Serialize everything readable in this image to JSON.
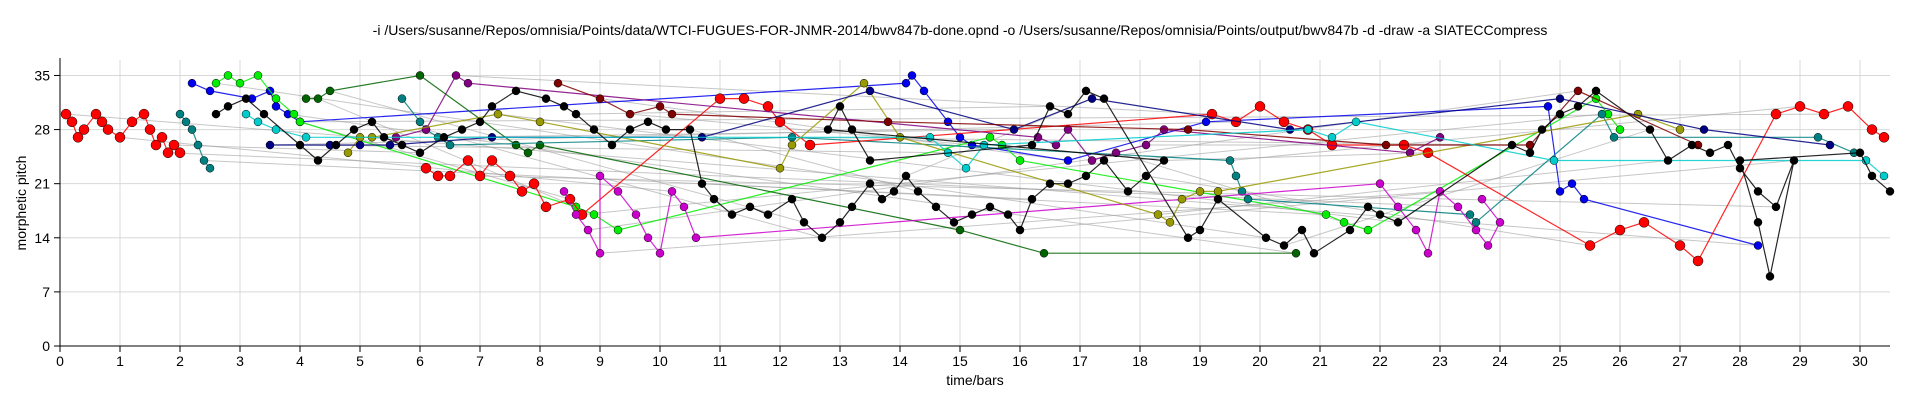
{
  "chart_data": {
    "type": "scatter",
    "title": "-i /Users/susanne/Repos/omnisia/Points/data/WTCI-FUGUES-FOR-JNMR-2014/bwv847b-done.opnd -o /Users/susanne/Repos/omnisia/Points/output/bwv847b -d -draw -a SIATECCompress",
    "xlabel": "time/bars",
    "ylabel": "morphetic pitch",
    "xlim": [
      0,
      30.5
    ],
    "ylim": [
      0,
      37
    ],
    "xticks": [
      0,
      1,
      2,
      3,
      4,
      5,
      6,
      7,
      8,
      9,
      10,
      11,
      12,
      13,
      14,
      15,
      16,
      17,
      18,
      19,
      20,
      21,
      22,
      23,
      24,
      25,
      26,
      27,
      28,
      29,
      30
    ],
    "yticks": [
      0,
      7,
      14,
      21,
      28,
      35
    ],
    "grid": true,
    "colors": {
      "red": "#ff0000",
      "blue": "#0000ee",
      "teal": "#008080",
      "cyan": "#00cccc",
      "green": "#00ee00",
      "darkgreen": "#006400",
      "magenta": "#cc00cc",
      "purple": "#800080",
      "olive": "#999900",
      "navy": "#000080",
      "maroon": "#800000",
      "black": "#000000",
      "connector_gray": "#999999"
    },
    "series": [
      {
        "color": "red",
        "points": [
          [
            0.1,
            30
          ],
          [
            0.2,
            29
          ],
          [
            0.3,
            27
          ],
          [
            0.4,
            28
          ],
          [
            0.6,
            30
          ],
          [
            0.7,
            29
          ],
          [
            0.8,
            28
          ],
          [
            1.0,
            27
          ],
          [
            1.2,
            29
          ],
          [
            1.4,
            30
          ],
          [
            1.5,
            28
          ],
          [
            1.6,
            26
          ],
          [
            1.7,
            27
          ],
          [
            1.8,
            25
          ],
          [
            1.9,
            26
          ],
          [
            2.0,
            25
          ]
        ]
      },
      {
        "color": "teal",
        "points": [
          [
            2.0,
            30
          ],
          [
            2.1,
            29
          ],
          [
            2.2,
            28
          ],
          [
            2.3,
            26
          ],
          [
            2.4,
            24
          ],
          [
            2.5,
            23
          ]
        ]
      },
      {
        "color": "blue",
        "points": [
          [
            2.2,
            34
          ],
          [
            2.5,
            33
          ],
          [
            3.2,
            32
          ],
          [
            3.5,
            33
          ],
          [
            3.6,
            31
          ],
          [
            3.8,
            30
          ],
          [
            4.0,
            29
          ],
          [
            14.1,
            34
          ],
          [
            14.2,
            35
          ],
          [
            14.4,
            33
          ],
          [
            14.8,
            29
          ],
          [
            15.0,
            27
          ],
          [
            15.2,
            26
          ],
          [
            16.8,
            24
          ],
          [
            19.1,
            29
          ],
          [
            24.8,
            31
          ],
          [
            25.0,
            20
          ],
          [
            25.2,
            21
          ],
          [
            25.4,
            19
          ],
          [
            28.3,
            13
          ]
        ]
      },
      {
        "color": "green",
        "points": [
          [
            2.6,
            34
          ],
          [
            2.8,
            35
          ],
          [
            3.0,
            34
          ],
          [
            3.3,
            35
          ],
          [
            3.6,
            32
          ],
          [
            3.9,
            30
          ],
          [
            4.0,
            29
          ],
          [
            8.6,
            18
          ],
          [
            8.9,
            17
          ],
          [
            9.3,
            15
          ],
          [
            15.5,
            27
          ],
          [
            15.7,
            26
          ],
          [
            16.0,
            24
          ],
          [
            21.1,
            17
          ],
          [
            21.4,
            16
          ],
          [
            21.8,
            15
          ],
          [
            25.6,
            32
          ],
          [
            25.8,
            30
          ],
          [
            26.0,
            28
          ]
        ]
      },
      {
        "color": "darkgreen",
        "points": [
          [
            4.1,
            32
          ],
          [
            4.3,
            32
          ],
          [
            4.5,
            33
          ],
          [
            6.0,
            35
          ],
          [
            7.6,
            26
          ],
          [
            7.8,
            25
          ],
          [
            8.0,
            26
          ],
          [
            15.0,
            15
          ],
          [
            16.4,
            12
          ],
          [
            20.6,
            12
          ]
        ]
      },
      {
        "color": "teal",
        "points": [
          [
            5.7,
            32
          ],
          [
            6.0,
            29
          ],
          [
            6.1,
            28
          ],
          [
            6.3,
            27
          ],
          [
            6.5,
            26
          ],
          [
            12.2,
            27
          ],
          [
            19.5,
            24
          ],
          [
            19.6,
            22
          ],
          [
            19.7,
            20
          ],
          [
            19.8,
            19
          ],
          [
            23.5,
            17
          ],
          [
            23.6,
            16
          ],
          [
            25.7,
            30
          ],
          [
            25.9,
            27
          ],
          [
            29.3,
            27
          ],
          [
            29.9,
            25
          ]
        ]
      },
      {
        "color": "red",
        "points": [
          [
            6.1,
            23
          ],
          [
            6.3,
            22
          ],
          [
            6.5,
            22
          ],
          [
            6.8,
            24
          ],
          [
            7.0,
            22
          ],
          [
            7.2,
            24
          ],
          [
            7.5,
            22
          ],
          [
            7.7,
            20
          ],
          [
            7.9,
            21
          ],
          [
            8.1,
            18
          ],
          [
            8.5,
            19
          ],
          [
            8.7,
            17
          ],
          [
            11.0,
            32
          ],
          [
            11.4,
            32
          ],
          [
            11.8,
            31
          ],
          [
            12.0,
            29
          ],
          [
            12.5,
            26
          ],
          [
            19.2,
            30
          ],
          [
            19.6,
            29
          ],
          [
            20.0,
            31
          ],
          [
            20.4,
            29
          ],
          [
            20.8,
            28
          ],
          [
            21.2,
            26
          ],
          [
            22.4,
            26
          ],
          [
            22.8,
            25
          ],
          [
            25.5,
            13
          ],
          [
            26.0,
            15
          ],
          [
            26.4,
            16
          ],
          [
            27.0,
            13
          ],
          [
            27.3,
            11
          ],
          [
            28.6,
            30
          ],
          [
            29.0,
            31
          ],
          [
            29.4,
            30
          ],
          [
            29.8,
            31
          ],
          [
            30.2,
            28
          ],
          [
            30.4,
            27
          ]
        ]
      },
      {
        "color": "magenta",
        "points": [
          [
            8.4,
            20
          ],
          [
            8.6,
            17
          ],
          [
            8.8,
            15
          ],
          [
            9.0,
            12
          ],
          [
            9.0,
            22
          ],
          [
            9.3,
            20
          ],
          [
            9.6,
            17
          ],
          [
            9.8,
            14
          ],
          [
            10.0,
            12
          ],
          [
            10.2,
            20
          ],
          [
            10.4,
            18
          ],
          [
            10.6,
            14
          ],
          [
            22.0,
            21
          ],
          [
            22.3,
            18
          ],
          [
            22.6,
            15
          ],
          [
            22.8,
            12
          ],
          [
            23.0,
            20
          ],
          [
            23.3,
            18
          ],
          [
            23.6,
            15
          ],
          [
            23.8,
            13
          ],
          [
            24.0,
            16
          ],
          [
            23.7,
            19
          ]
        ]
      },
      {
        "color": "purple",
        "points": [
          [
            5.6,
            27
          ],
          [
            6.1,
            28
          ],
          [
            6.6,
            35
          ],
          [
            6.8,
            34
          ],
          [
            16.3,
            27
          ],
          [
            16.6,
            26
          ],
          [
            16.8,
            28
          ],
          [
            17.2,
            24
          ],
          [
            17.6,
            25
          ],
          [
            18.1,
            26
          ],
          [
            18.4,
            28
          ],
          [
            22.5,
            25
          ],
          [
            23.0,
            27
          ]
        ]
      },
      {
        "color": "olive",
        "points": [
          [
            4.8,
            25
          ],
          [
            5.0,
            27
          ],
          [
            5.2,
            27
          ],
          [
            7.3,
            30
          ],
          [
            8.0,
            29
          ],
          [
            12.0,
            23
          ],
          [
            12.2,
            26
          ],
          [
            13.4,
            34
          ],
          [
            14.0,
            27
          ],
          [
            18.3,
            17
          ],
          [
            18.5,
            16
          ],
          [
            18.7,
            19
          ],
          [
            19.0,
            20
          ],
          [
            19.3,
            20
          ],
          [
            26.3,
            30
          ],
          [
            27.0,
            28
          ]
        ]
      },
      {
        "color": "navy",
        "points": [
          [
            3.5,
            26
          ],
          [
            4.5,
            26
          ],
          [
            5.0,
            26
          ],
          [
            5.5,
            26
          ],
          [
            7.2,
            27
          ],
          [
            10.7,
            27
          ],
          [
            13.5,
            33
          ],
          [
            15.9,
            28
          ],
          [
            17.2,
            32
          ],
          [
            20.5,
            28
          ],
          [
            25.0,
            32
          ],
          [
            27.4,
            28
          ],
          [
            29.5,
            26
          ]
        ]
      },
      {
        "color": "maroon",
        "points": [
          [
            8.3,
            34
          ],
          [
            9.0,
            32
          ],
          [
            9.5,
            30
          ],
          [
            10.0,
            31
          ],
          [
            10.2,
            30
          ],
          [
            13.8,
            29
          ],
          [
            18.8,
            28
          ],
          [
            22.1,
            26
          ],
          [
            24.5,
            26
          ],
          [
            25.3,
            33
          ],
          [
            27.3,
            26
          ]
        ]
      },
      {
        "color": "cyan",
        "points": [
          [
            3.1,
            30
          ],
          [
            3.3,
            29
          ],
          [
            3.6,
            28
          ],
          [
            4.1,
            27
          ],
          [
            14.5,
            27
          ],
          [
            14.8,
            25
          ],
          [
            15.1,
            23
          ],
          [
            15.4,
            26
          ],
          [
            20.8,
            28
          ],
          [
            21.2,
            27
          ],
          [
            21.6,
            29
          ],
          [
            24.9,
            24
          ],
          [
            30.1,
            24
          ],
          [
            30.4,
            22
          ]
        ]
      },
      {
        "color": "black",
        "points": [
          [
            2.6,
            30
          ],
          [
            2.8,
            31
          ],
          [
            3.1,
            32
          ],
          [
            3.4,
            30
          ],
          [
            4.0,
            26
          ],
          [
            4.3,
            24
          ],
          [
            4.6,
            26
          ],
          [
            4.9,
            28
          ],
          [
            5.2,
            29
          ],
          [
            5.4,
            27
          ],
          [
            5.7,
            26
          ],
          [
            6.0,
            25
          ],
          [
            6.4,
            27
          ],
          [
            6.7,
            28
          ],
          [
            7.0,
            29
          ],
          [
            7.2,
            31
          ],
          [
            7.6,
            33
          ],
          [
            8.1,
            32
          ],
          [
            8.4,
            31
          ],
          [
            8.6,
            30
          ],
          [
            8.9,
            28
          ],
          [
            9.2,
            26
          ],
          [
            9.5,
            28
          ],
          [
            9.8,
            29
          ],
          [
            10.1,
            28
          ],
          [
            10.5,
            28
          ],
          [
            10.7,
            21
          ],
          [
            10.9,
            19
          ],
          [
            11.2,
            17
          ],
          [
            11.5,
            18
          ],
          [
            11.8,
            17
          ],
          [
            12.2,
            19
          ],
          [
            12.4,
            16
          ],
          [
            12.7,
            14
          ],
          [
            13.0,
            16
          ],
          [
            13.2,
            18
          ],
          [
            13.5,
            21
          ],
          [
            13.7,
            19
          ],
          [
            13.9,
            20
          ],
          [
            14.1,
            22
          ],
          [
            14.3,
            20
          ],
          [
            14.6,
            18
          ],
          [
            14.9,
            16
          ],
          [
            15.2,
            17
          ],
          [
            15.5,
            18
          ],
          [
            15.8,
            17
          ],
          [
            16.0,
            15
          ],
          [
            16.2,
            19
          ],
          [
            16.5,
            21
          ],
          [
            16.8,
            21
          ],
          [
            17.1,
            22
          ],
          [
            17.4,
            24
          ],
          [
            17.8,
            20
          ],
          [
            18.1,
            22
          ],
          [
            18.4,
            24
          ],
          [
            12.8,
            28
          ],
          [
            13.0,
            31
          ],
          [
            13.2,
            28
          ],
          [
            13.5,
            24
          ],
          [
            16.2,
            26
          ],
          [
            16.5,
            31
          ],
          [
            16.8,
            30
          ],
          [
            17.1,
            33
          ],
          [
            17.4,
            32
          ],
          [
            18.8,
            14
          ],
          [
            19.0,
            15
          ],
          [
            19.3,
            19
          ],
          [
            20.1,
            14
          ],
          [
            20.4,
            13
          ],
          [
            20.7,
            15
          ],
          [
            20.9,
            12
          ],
          [
            21.5,
            15
          ],
          [
            21.8,
            18
          ],
          [
            22.0,
            17
          ],
          [
            22.3,
            16
          ],
          [
            24.2,
            26
          ],
          [
            24.5,
            25
          ],
          [
            24.7,
            28
          ],
          [
            25.0,
            30
          ],
          [
            25.3,
            31
          ],
          [
            25.6,
            33
          ],
          [
            26.5,
            28
          ],
          [
            26.8,
            24
          ],
          [
            27.2,
            26
          ],
          [
            27.5,
            25
          ],
          [
            27.8,
            26
          ],
          [
            28.0,
            23
          ],
          [
            28.3,
            20
          ],
          [
            28.6,
            18
          ],
          [
            28.9,
            24
          ],
          [
            28.5,
            9
          ],
          [
            28.3,
            16
          ],
          [
            28.0,
            24
          ],
          [
            30.0,
            25
          ],
          [
            30.2,
            22
          ],
          [
            30.5,
            20
          ]
        ]
      }
    ]
  }
}
